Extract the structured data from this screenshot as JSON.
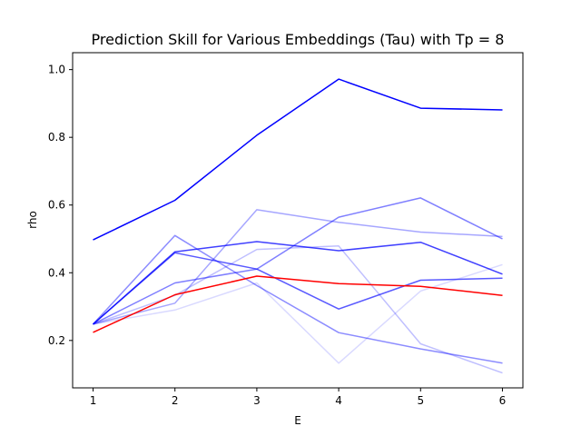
{
  "chart_data": {
    "type": "line",
    "title": "Prediction Skill for Various Embeddings (Tau) with Tp = 8",
    "xlabel": "E",
    "ylabel": "rho",
    "x": [
      1,
      2,
      3,
      4,
      5,
      6
    ],
    "xlim": [
      0.75,
      6.25
    ],
    "ylim": [
      0.06,
      1.05
    ],
    "xticks": [
      "1",
      "2",
      "3",
      "4",
      "5",
      "6"
    ],
    "yticks": [
      "0.2",
      "0.4",
      "0.6",
      "0.8",
      "1.0"
    ],
    "grid": false,
    "series": [
      {
        "color": "#0000ff",
        "opacity": 1.0,
        "values": [
          0.497,
          0.614,
          0.806,
          0.972,
          0.886,
          0.881
        ]
      },
      {
        "color": "#0000ff",
        "opacity": 0.75,
        "values": [
          0.248,
          0.462,
          0.492,
          0.465,
          0.49,
          0.396
        ]
      },
      {
        "color": "#0000ff",
        "opacity": 0.65,
        "values": [
          0.248,
          0.459,
          0.411,
          0.293,
          0.378,
          0.384
        ]
      },
      {
        "color": "#0000ff",
        "opacity": 0.5,
        "values": [
          0.248,
          0.37,
          0.411,
          0.564,
          0.621,
          0.5
        ]
      },
      {
        "color": "#0000ff",
        "opacity": 0.45,
        "values": [
          0.248,
          0.51,
          0.362,
          0.223,
          0.175,
          0.133
        ]
      },
      {
        "color": "#0000ff",
        "opacity": 0.35,
        "values": [
          0.248,
          0.31,
          0.586,
          0.549,
          0.52,
          0.507
        ]
      },
      {
        "color": "#0000ff",
        "opacity": 0.25,
        "values": [
          0.248,
          0.333,
          0.469,
          0.479,
          0.19,
          0.104
        ]
      },
      {
        "color": "#0000ff",
        "opacity": 0.15,
        "values": [
          0.248,
          0.29,
          0.37,
          0.133,
          0.346,
          0.424
        ]
      },
      {
        "color": "#ff0000",
        "opacity": 1.0,
        "values": [
          0.224,
          0.335,
          0.39,
          0.368,
          0.36,
          0.333
        ]
      }
    ]
  }
}
